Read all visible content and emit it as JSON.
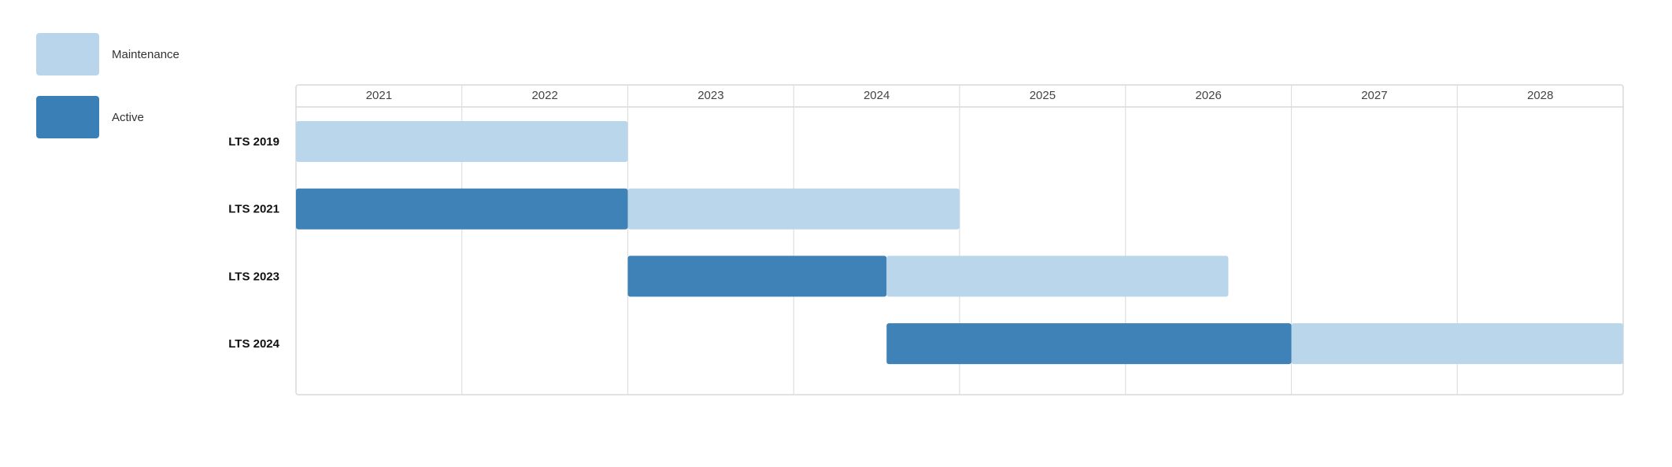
{
  "chart_data": {
    "type": "gantt",
    "title": "",
    "legend": [
      {
        "key": "maintenance",
        "label": "Maintenance",
        "color": "#b9d5eb"
      },
      {
        "key": "active",
        "label": "Active",
        "color": "#3a7fb6"
      }
    ],
    "years": [
      "2021",
      "2022",
      "2023",
      "2024",
      "2025",
      "2026",
      "2027",
      "2028"
    ],
    "x_range": [
      2021.0,
      2029.0
    ],
    "rows": [
      {
        "label": "LTS 2019",
        "segments": [
          {
            "phase": "maintenance",
            "start": 2021.0,
            "end": 2023.0
          }
        ]
      },
      {
        "label": "LTS 2021",
        "segments": [
          {
            "phase": "active",
            "start": 2021.0,
            "end": 2023.0
          },
          {
            "phase": "maintenance",
            "start": 2023.0,
            "end": 2025.0
          }
        ]
      },
      {
        "label": "LTS 2023",
        "segments": [
          {
            "phase": "active",
            "start": 2023.0,
            "end": 2024.56
          },
          {
            "phase": "maintenance",
            "start": 2024.56,
            "end": 2026.62
          }
        ]
      },
      {
        "label": "LTS 2024",
        "segments": [
          {
            "phase": "active",
            "start": 2024.56,
            "end": 2027.0
          },
          {
            "phase": "maintenance",
            "start": 2027.0,
            "end": 2029.0
          }
        ]
      }
    ]
  }
}
